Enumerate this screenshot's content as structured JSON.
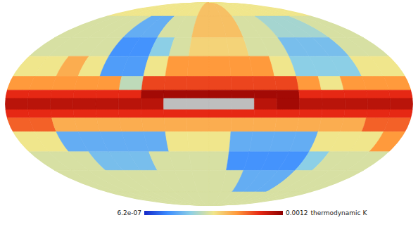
{
  "chart_data": {
    "type": "heatmap",
    "lon_edges": [
      -180,
      -160,
      -140,
      -120,
      -100,
      -80,
      -60,
      -40,
      -20,
      0,
      20,
      40,
      60,
      80,
      100,
      120,
      140,
      160,
      180
    ],
    "lat_edges": [
      90,
      70,
      50,
      35,
      20,
      10,
      4,
      -4,
      -10,
      -20,
      -35,
      -50,
      -70,
      -90
    ],
    "cells": [
      [
        0.0006,
        0.0006,
        0.0006,
        0.0006,
        0.0006,
        0.0006,
        0.0006,
        0.0006,
        0.0007,
        0.0007,
        0.0007,
        0.0006,
        0.0006,
        0.0006,
        0.0006,
        0.0006,
        0.0006,
        0.0006
      ],
      [
        0.00055,
        0.00055,
        0.00055,
        0.00055,
        0.0003,
        0.0003,
        0.00055,
        0.00055,
        0.0007,
        0.0007,
        0.0007,
        0.00055,
        0.00055,
        0.00045,
        0.00045,
        0.00045,
        0.00055,
        0.00055
      ],
      [
        0.00055,
        0.00055,
        0.00055,
        0.00055,
        0.00022,
        0.00022,
        0.0004,
        0.00055,
        0.00065,
        0.00065,
        0.00065,
        0.00055,
        0.00055,
        0.00035,
        0.00035,
        0.00035,
        0.00055,
        0.00055
      ],
      [
        0.0006,
        0.0006,
        0.00075,
        0.0006,
        0.00025,
        0.00025,
        0.0006,
        0.0008,
        0.0008,
        0.0008,
        0.0008,
        0.0008,
        0.0006,
        0.0004,
        0.0004,
        0.0004,
        0.0006,
        0.0006
      ],
      [
        0.0008,
        0.0008,
        0.0008,
        0.0008,
        0.0008,
        0.0005,
        0.00095,
        0.00095,
        0.00095,
        0.00095,
        0.00095,
        0.00095,
        0.00095,
        0.0008,
        0.0006,
        0.0008,
        0.0008,
        0.0008
      ],
      [
        0.001,
        0.001,
        0.001,
        0.001,
        0.001,
        0.001,
        0.00115,
        0.00115,
        0.00115,
        0.00115,
        0.00115,
        0.00115,
        0.00115,
        0.001,
        0.001,
        0.001,
        0.001,
        0.001
      ],
      [
        0.0011,
        0.0011,
        0.0011,
        0.0011,
        0.0011,
        0.0011,
        0.0011,
        null,
        null,
        null,
        null,
        0.0011,
        0.00115,
        0.0011,
        0.0011,
        0.0011,
        0.0011,
        0.0011
      ],
      [
        0.001,
        0.001,
        0.001,
        0.001,
        0.001,
        0.001,
        0.001,
        0.001,
        0.001,
        0.001,
        0.001,
        0.001,
        0.001,
        0.001,
        0.001,
        0.001,
        0.001,
        0.001
      ],
      [
        0.0009,
        0.0009,
        0.00075,
        0.00075,
        0.00075,
        0.00075,
        0.00075,
        0.00075,
        0.00075,
        0.00075,
        0.00075,
        0.00075,
        0.00075,
        0.00075,
        0.00075,
        0.00075,
        0.0009,
        0.0009
      ],
      [
        0.0006,
        0.0006,
        0.0003,
        0.0003,
        0.0003,
        0.0003,
        0.0003,
        0.0006,
        0.0006,
        0.0006,
        0.0003,
        0.0003,
        0.0003,
        0.0003,
        0.0006,
        0.0006,
        0.0006,
        0.0008
      ],
      [
        0.00055,
        0.00055,
        0.00055,
        0.00035,
        0.00035,
        0.00035,
        0.00055,
        0.00055,
        0.00055,
        0.00055,
        0.00022,
        0.00022,
        0.00022,
        0.00022,
        0.0004,
        0.00055,
        0.00055,
        0.00055
      ],
      [
        0.00055,
        0.00055,
        0.00055,
        0.00055,
        0.00055,
        0.00055,
        0.00055,
        0.00055,
        0.00055,
        0.00055,
        0.00055,
        0.0003,
        0.0003,
        0.0003,
        0.00055,
        0.00055,
        0.00055,
        0.00055
      ],
      [
        0.00055,
        0.00055,
        0.00055,
        0.00055,
        0.00055,
        0.00055,
        0.00055,
        0.00055,
        0.00055,
        0.00055,
        0.00055,
        0.00055,
        0.00055,
        0.00055,
        0.00055,
        0.00055,
        0.00055,
        0.00055
      ]
    ],
    "colorbar": {
      "range": [
        6.2e-07,
        0.0012
      ],
      "ticks": [
        {
          "value": 6.2e-07,
          "label": "6.2e-07"
        },
        {
          "value": 0.0012,
          "label": "0.0012"
        }
      ],
      "label": "thermodynamic K"
    }
  }
}
